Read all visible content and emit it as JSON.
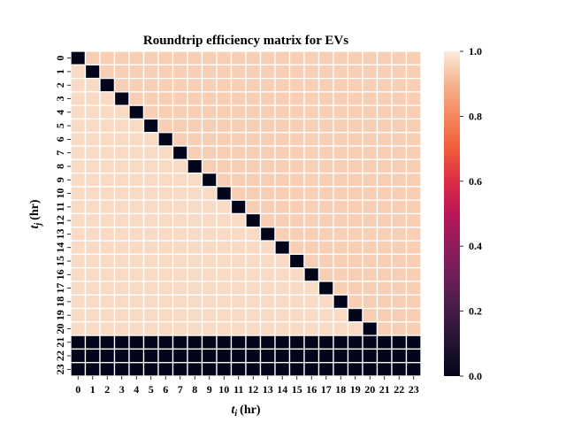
{
  "chart_data": {
    "type": "heatmap",
    "title": "Roundtrip efficiency matrix for EVs",
    "xlabel": "t",
    "xlabel_sub": "i",
    "xlabel_unit": "(hr)",
    "ylabel": "t",
    "ylabel_sub": "j",
    "ylabel_unit": "(hr)",
    "x_ticks": [
      "0",
      "1",
      "2",
      "3",
      "4",
      "5",
      "6",
      "7",
      "8",
      "9",
      "10",
      "11",
      "12",
      "13",
      "14",
      "15",
      "16",
      "17",
      "18",
      "19",
      "20",
      "21",
      "22",
      "23"
    ],
    "y_ticks": [
      "0",
      "1",
      "2",
      "3",
      "4",
      "5",
      "6",
      "7",
      "8",
      "9",
      "10",
      "11",
      "12",
      "13",
      "14",
      "15",
      "16",
      "17",
      "18",
      "19",
      "20",
      "21",
      "22",
      "23"
    ],
    "rows": 24,
    "cols": 24,
    "value_rule": "value = 0.0 on the diagonal (i == j) and for all rows j >= 21; otherwise value = 0.95 for i > j (upper triangle) and 0.97 for i < j (lower triangle)",
    "diagonal_value": 0.0,
    "upper_triangle_value": 0.95,
    "lower_triangle_value": 0.97,
    "zero_rows_from": 21,
    "colorbar": {
      "min": 0.0,
      "max": 1.0,
      "ticks": [
        "0.0",
        "0.2",
        "0.4",
        "0.6",
        "0.8",
        "1.0"
      ],
      "colormap": "rocket",
      "color_low": "#03051a",
      "color_high": "#faebdd"
    },
    "grid_line_color": "#ffffff"
  }
}
